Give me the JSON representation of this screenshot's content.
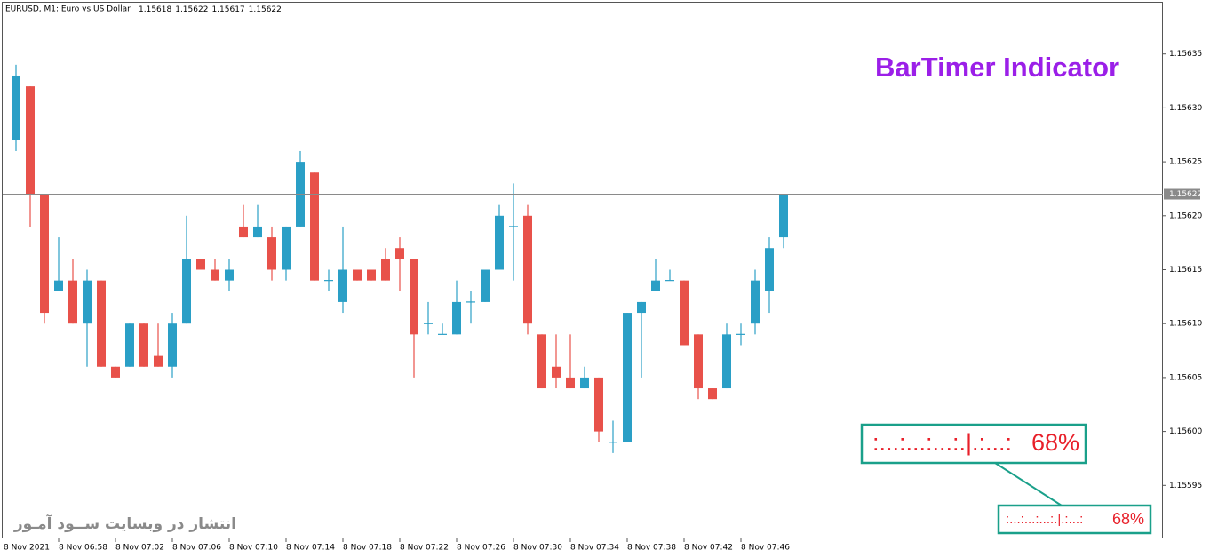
{
  "chart_data": {
    "type": "candlestick",
    "symbol": "EURUSD, M1:  Euro vs US Dollar",
    "title": "BarTimer Indicator",
    "watermark": "انتشار در وبسایت  ســود آمـوز",
    "date_label": "8 Nov 2021",
    "categories": [
      null,
      null,
      null,
      "8 Nov 06:58",
      null,
      null,
      null,
      "8 Nov 07:02",
      null,
      null,
      null,
      "8 Nov 07:06",
      null,
      null,
      null,
      "8 Nov 07:10",
      null,
      null,
      null,
      "8 Nov 07:14",
      null,
      null,
      null,
      "8 Nov 07:18",
      null,
      null,
      null,
      "8 Nov 07:22",
      null,
      null,
      null,
      "8 Nov 07:26",
      null,
      null,
      null,
      "8 Nov 07:30",
      null,
      null,
      null,
      "8 Nov 07:34",
      null,
      null,
      null,
      "8 Nov 07:38",
      null,
      null,
      null,
      "8 Nov 07:42",
      null,
      null,
      null,
      "8 Nov 07:46",
      null,
      null,
      null
    ],
    "open": [
      1.15627,
      1.15632,
      1.15622,
      1.15613,
      1.15614,
      1.1561,
      1.15614,
      1.15606,
      1.15606,
      1.1561,
      1.15607,
      1.15606,
      1.1561,
      1.15616,
      1.15615,
      1.15614,
      1.15619,
      1.15618,
      1.15618,
      1.15615,
      1.15619,
      1.15624,
      1.15614,
      1.15612,
      1.15615,
      1.15615,
      1.15616,
      1.15617,
      1.15616,
      1.1561,
      1.15609,
      1.15609,
      1.15612,
      1.15612,
      1.15615,
      1.15619,
      1.1562,
      1.15609,
      1.15606,
      1.15605,
      1.15604,
      1.15605,
      1.15599,
      1.15599,
      1.15611,
      1.15613,
      1.15614,
      1.15614,
      1.15609,
      1.15604,
      1.15604,
      1.15609,
      1.1561,
      1.15613,
      1.15618
    ],
    "high": [
      1.15634,
      1.15632,
      1.15622,
      1.15618,
      1.15616,
      1.15615,
      1.15614,
      1.15606,
      1.1561,
      1.1561,
      1.1561,
      1.15611,
      1.1562,
      1.15616,
      1.15616,
      1.15616,
      1.15621,
      1.15621,
      1.15619,
      1.15619,
      1.15626,
      1.15624,
      1.15615,
      1.15619,
      1.15615,
      1.15615,
      1.15617,
      1.15618,
      1.15616,
      1.15612,
      1.1561,
      1.15614,
      1.15613,
      1.15615,
      1.15621,
      1.15623,
      1.15621,
      1.15609,
      1.15609,
      1.15609,
      1.15606,
      1.15605,
      1.15601,
      1.15611,
      1.15612,
      1.15616,
      1.15615,
      1.15614,
      1.15609,
      1.15604,
      1.1561,
      1.1561,
      1.15615,
      1.15618,
      1.15622
    ],
    "low": [
      1.15626,
      1.15619,
      1.1561,
      1.15613,
      1.1561,
      1.15606,
      1.15606,
      1.15605,
      1.15606,
      1.15606,
      1.15606,
      1.15605,
      1.1561,
      1.15615,
      1.15614,
      1.15613,
      1.15618,
      1.15618,
      1.15614,
      1.15614,
      1.15619,
      1.15614,
      1.15613,
      1.15611,
      1.15614,
      1.15614,
      1.15614,
      1.15613,
      1.15605,
      1.15609,
      1.15609,
      1.15609,
      1.1561,
      1.15612,
      1.15615,
      1.15614,
      1.15609,
      1.15604,
      1.15604,
      1.15604,
      1.15604,
      1.15599,
      1.15598,
      1.15599,
      1.15605,
      1.15613,
      1.15614,
      1.15608,
      1.15603,
      1.15603,
      1.15604,
      1.15608,
      1.15609,
      1.15611,
      1.15617
    ],
    "close": [
      1.15633,
      1.15622,
      1.15611,
      1.15614,
      1.1561,
      1.15614,
      1.15606,
      1.15605,
      1.1561,
      1.15606,
      1.15606,
      1.1561,
      1.15616,
      1.15615,
      1.15614,
      1.15615,
      1.15618,
      1.15619,
      1.15615,
      1.15619,
      1.15625,
      1.15614,
      1.15614,
      1.15615,
      1.15614,
      1.15614,
      1.15614,
      1.15616,
      1.15609,
      1.1561,
      1.15609,
      1.15612,
      1.15612,
      1.15615,
      1.1562,
      1.15619,
      1.1561,
      1.15604,
      1.15605,
      1.15604,
      1.15605,
      1.156,
      1.15599,
      1.15611,
      1.15612,
      1.15614,
      1.15614,
      1.15608,
      1.15604,
      1.15603,
      1.15609,
      1.15609,
      1.15614,
      1.15617,
      1.15622
    ],
    "up_color": "#2a9fc6",
    "down_color": "#e8514a",
    "ylim": [
      1.1559,
      1.1564
    ],
    "yticks": [
      1.15595,
      {
        "value": 1.156,
        "label": "1.15600"
      },
      1.15605,
      {
        "value": 1.1561,
        "label": "1.15610"
      },
      1.15615,
      {
        "value": 1.1562,
        "label": "1.15620"
      },
      1.15625,
      {
        "value": 1.1563,
        "label": "1.15630"
      },
      1.15635
    ],
    "timer": {
      "bar": ":...:...:...:.|.:...:",
      "percent": 68,
      "percent_label": "68%"
    }
  }
}
